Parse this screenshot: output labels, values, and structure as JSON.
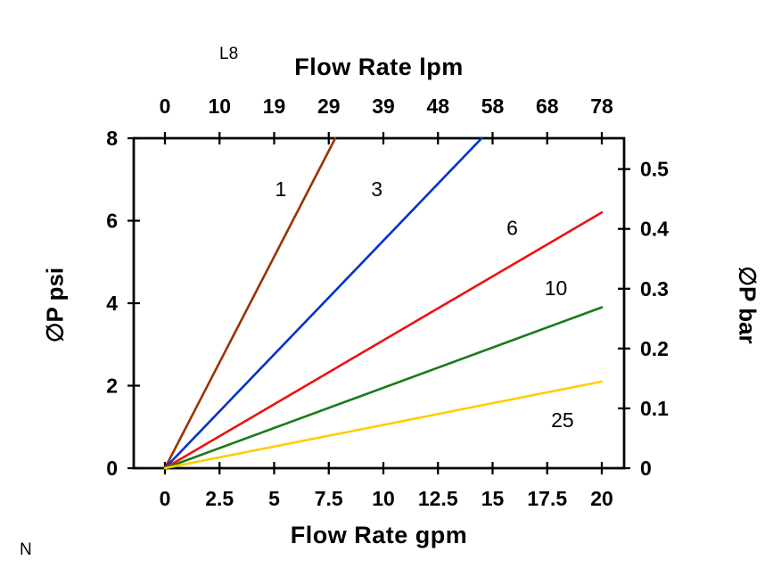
{
  "annotations": {
    "top_left": "L8",
    "bottom_left": "N"
  },
  "chart_data": {
    "type": "line",
    "title_top_axis": "Flow Rate lpm",
    "xlabel_bottom": "Flow Rate gpm",
    "ylabel_left": "∅P psi",
    "ylabel_right": "∅P bar",
    "xlim": [
      0,
      20
    ],
    "ylim": [
      0,
      8
    ],
    "grid": false,
    "x_bottom_ticks": [
      0,
      2.5,
      5,
      7.5,
      10,
      12.5,
      15,
      17.5,
      20
    ],
    "x_bottom_tick_labels": [
      "0",
      "2.5",
      "5",
      "7.5",
      "10",
      "12.5",
      "15",
      "17.5",
      "20"
    ],
    "x_top_tick_labels": [
      "0",
      "10",
      "19",
      "29",
      "39",
      "48",
      "58",
      "68",
      "78"
    ],
    "y_left_ticks": [
      0,
      2,
      4,
      6,
      8
    ],
    "y_left_tick_labels": [
      "0",
      "2",
      "4",
      "6",
      "8"
    ],
    "y_right_tick_labels": [
      "0",
      "0.1",
      "0.2",
      "0.3",
      "0.4",
      "0.5"
    ],
    "y_right_tick_psi": [
      0,
      1.45,
      2.901,
      4.351,
      5.802,
      7.252
    ],
    "series": [
      {
        "name": "1",
        "color": "#993300",
        "points": [
          [
            0,
            0
          ],
          [
            7.8,
            8
          ]
        ],
        "label": "1",
        "label_pos": [
          5.3,
          6.6
        ]
      },
      {
        "name": "3",
        "color": "#0033cc",
        "points": [
          [
            0,
            0
          ],
          [
            14.5,
            8
          ]
        ],
        "label": "3",
        "label_pos": [
          9.7,
          6.6
        ]
      },
      {
        "name": "6",
        "color": "#ee1111",
        "points": [
          [
            0,
            0
          ],
          [
            20,
            6.2
          ]
        ],
        "label": "6",
        "label_pos": [
          15.9,
          5.65
        ]
      },
      {
        "name": "10",
        "color": "#1a7a1a",
        "points": [
          [
            0,
            0
          ],
          [
            20,
            3.9
          ]
        ],
        "label": "10",
        "label_pos": [
          17.9,
          4.2
        ]
      },
      {
        "name": "25",
        "color": "#ffcc00",
        "points": [
          [
            0,
            0
          ],
          [
            20,
            2.1
          ]
        ],
        "label": "25",
        "label_pos": [
          18.2,
          1.0
        ]
      }
    ]
  }
}
